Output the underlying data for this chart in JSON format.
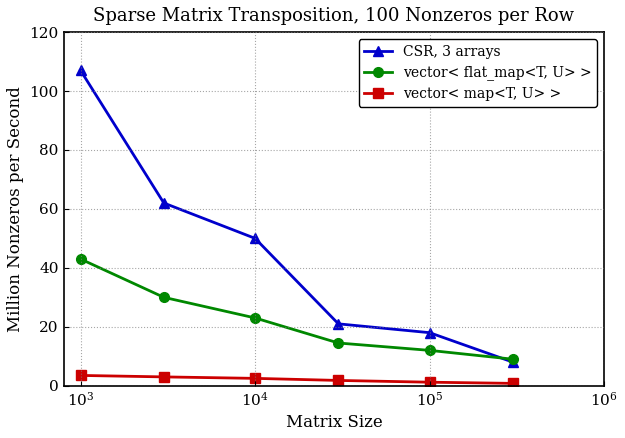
{
  "title": "Sparse Matrix Transposition, 100 Nonzeros per Row",
  "xlabel": "Matrix Size",
  "ylabel": "Million Nonzeros per Second",
  "x_values": [
    1000,
    3000,
    10000,
    30000,
    100000,
    300000
  ],
  "series": [
    {
      "label": "CSR, 3 arrays",
      "color": "#0000cc",
      "marker": "^",
      "linewidth": 2.0,
      "markersize": 7,
      "y_values": [
        107,
        62,
        50,
        21,
        18,
        8
      ]
    },
    {
      "label": "vector< flat_map<T, U> >",
      "color": "#008800",
      "marker": "o",
      "linewidth": 2.0,
      "markersize": 7,
      "y_values": [
        43,
        30,
        23,
        14.5,
        12,
        9
      ]
    },
    {
      "label": "vector< map<T, U> >",
      "color": "#cc0000",
      "marker": "s",
      "linewidth": 2.0,
      "markersize": 7,
      "y_values": [
        3.5,
        3.0,
        2.5,
        1.8,
        1.2,
        0.8
      ]
    }
  ],
  "xlim": [
    800,
    1000000
  ],
  "ylim": [
    0,
    120
  ],
  "yticks": [
    0,
    20,
    40,
    60,
    80,
    100,
    120
  ],
  "grid": true,
  "background_color": "#ffffff",
  "legend_loc": "upper right",
  "title_fontsize": 13,
  "label_fontsize": 12,
  "tick_fontsize": 11
}
